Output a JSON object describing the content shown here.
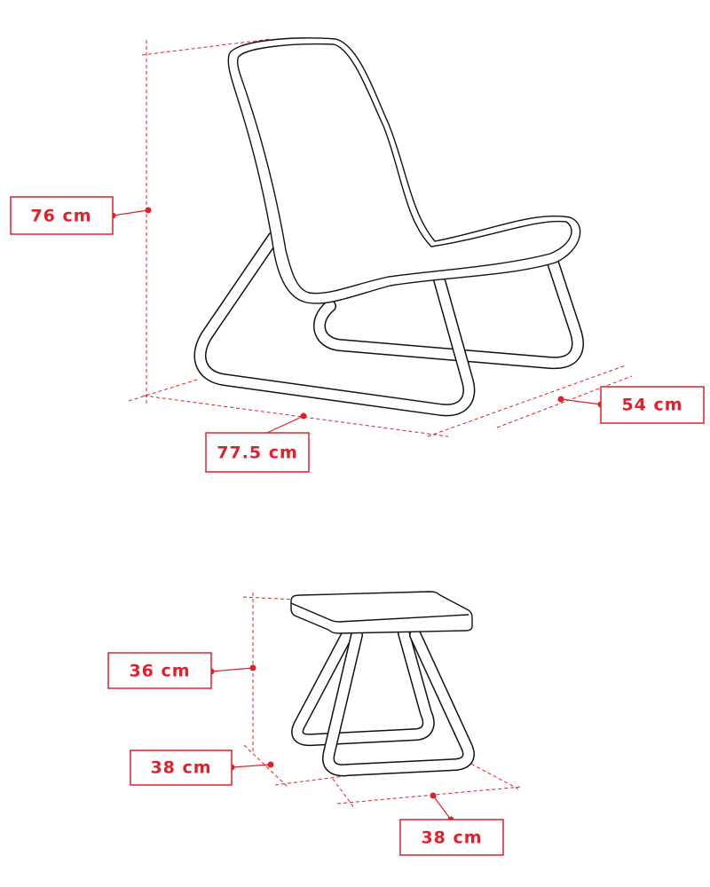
{
  "chair": {
    "height": "76 cm",
    "depth": "77.5 cm",
    "width": "54 cm"
  },
  "stool": {
    "height": "36 cm",
    "width": "38 cm",
    "depth": "38 cm"
  }
}
